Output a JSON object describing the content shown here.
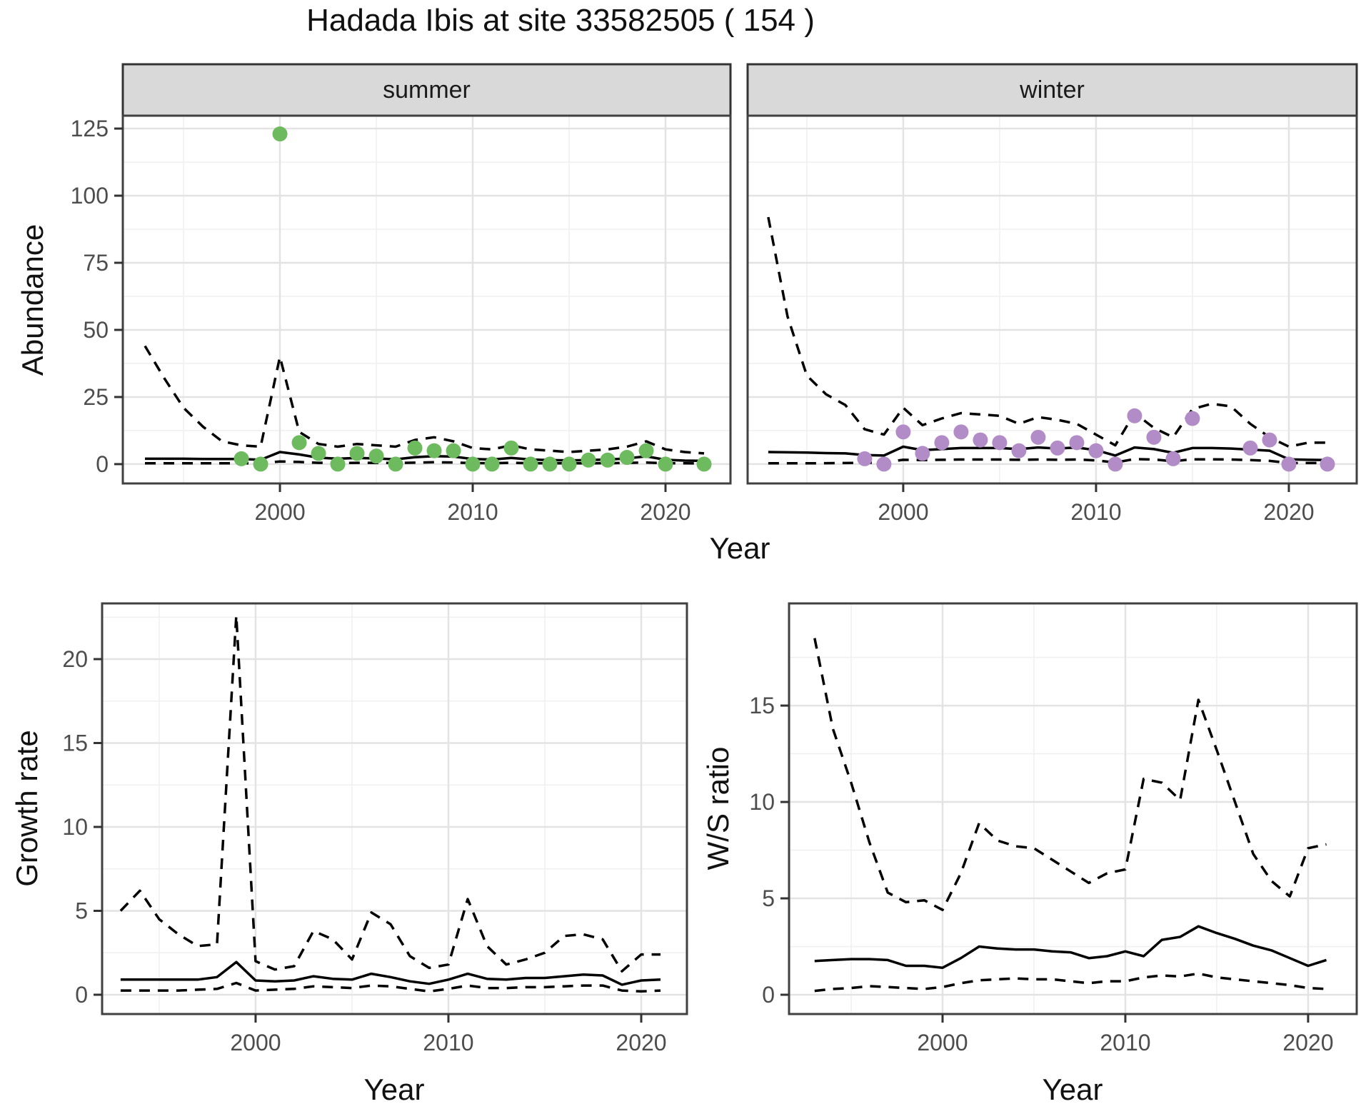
{
  "title": "Hadada Ibis at site 33582505 ( 154 )",
  "facets": {
    "summer": "summer",
    "winter": "winter"
  },
  "axes": {
    "x_title": "Year",
    "abundance_title": "Abundance",
    "growth_title": "Growth rate",
    "ws_title": "W/S ratio"
  },
  "colors": {
    "background": "#ffffff",
    "strip_bg": "#d9d9d9",
    "strip_border": "#333333",
    "panel_border": "#404040",
    "grid_major": "#e3e3e3",
    "grid_minor": "#f0f0f0",
    "line": "#000000",
    "tick_label": "#4d4d4d",
    "summer_point": "#6dbb5e",
    "winter_point": "#b28cc6"
  },
  "chart_data": [
    {
      "id": "abundance_summer",
      "type": "line",
      "facet_label": "summer",
      "xlabel": "Year",
      "ylabel": "Abundance",
      "x_ticks": [
        2000,
        2010,
        2020
      ],
      "y_ticks": [
        0,
        25,
        50,
        75,
        100,
        125
      ],
      "xlim": [
        1991.85,
        2023.37
      ],
      "ylim": [
        -7.2,
        129.8
      ],
      "grid": true,
      "series": [
        {
          "name": "fit",
          "style": "solid",
          "x": [
            1993,
            1994,
            1995,
            1996,
            1997,
            1998,
            1999,
            2000,
            2001,
            2002,
            2003,
            2004,
            2005,
            2006,
            2007,
            2008,
            2009,
            2010,
            2011,
            2012,
            2013,
            2014,
            2015,
            2016,
            2017,
            2018,
            2019,
            2020,
            2021,
            2022
          ],
          "y": [
            2.0,
            2.0,
            2.0,
            1.9,
            1.9,
            1.9,
            1.6,
            4.5,
            3.6,
            2.4,
            2.0,
            2.3,
            2.1,
            1.8,
            2.6,
            3.0,
            2.8,
            1.9,
            1.7,
            2.3,
            1.7,
            1.5,
            1.4,
            1.5,
            1.7,
            2.1,
            2.9,
            1.6,
            1.3,
            1.2
          ]
        },
        {
          "name": "upper_ci",
          "style": "dashed",
          "x": [
            1993,
            1994,
            1995,
            1996,
            1997,
            1998,
            1999,
            2000,
            2001,
            2002,
            2003,
            2004,
            2005,
            2006,
            2007,
            2008,
            2009,
            2010,
            2011,
            2012,
            2013,
            2014,
            2015,
            2016,
            2017,
            2018,
            2019,
            2020,
            2021,
            2022
          ],
          "y": [
            44,
            32,
            21,
            14,
            8.5,
            7,
            6.5,
            40,
            12,
            7.5,
            6.5,
            7.5,
            7,
            6.5,
            9,
            10,
            8.5,
            6,
            5.5,
            7,
            5.5,
            5,
            4.5,
            5,
            5.5,
            6.5,
            8.5,
            5.5,
            4.5,
            4
          ]
        },
        {
          "name": "lower_ci",
          "style": "dashed",
          "x": [
            1993,
            1994,
            1995,
            1996,
            1997,
            1998,
            1999,
            2000,
            2001,
            2002,
            2003,
            2004,
            2005,
            2006,
            2007,
            2008,
            2009,
            2010,
            2011,
            2012,
            2013,
            2014,
            2015,
            2016,
            2017,
            2018,
            2019,
            2020,
            2021,
            2022
          ],
          "y": [
            0.3,
            0.3,
            0.3,
            0.3,
            0.3,
            0.3,
            0.3,
            1.0,
            0.8,
            0.5,
            0.4,
            0.5,
            0.45,
            0.4,
            0.55,
            0.7,
            0.6,
            0.4,
            0.35,
            0.5,
            0.35,
            0.3,
            0.3,
            0.3,
            0.35,
            0.45,
            0.6,
            0.35,
            0.3,
            0.25
          ]
        },
        {
          "name": "counts",
          "style": "points",
          "color_key": "summer_point",
          "x": [
            1998,
            1999,
            2000,
            2001,
            2002,
            2003,
            2004,
            2005,
            2006,
            2007,
            2008,
            2009,
            2010,
            2011,
            2012,
            2013,
            2014,
            2015,
            2016,
            2017,
            2018,
            2019,
            2020,
            2022
          ],
          "y": [
            2,
            0,
            123,
            8,
            4,
            0,
            4,
            3,
            0,
            6,
            5,
            5,
            0,
            0,
            6,
            0,
            0,
            0,
            1.5,
            1.5,
            2.5,
            5,
            0,
            0
          ]
        }
      ]
    },
    {
      "id": "abundance_winter",
      "type": "line",
      "facet_label": "winter",
      "xlabel": "Year",
      "ylabel": "Abundance",
      "x_ticks": [
        2000,
        2010,
        2020
      ],
      "y_ticks": [
        0,
        25,
        50,
        75,
        100,
        125
      ],
      "xlim": [
        1991.93,
        2023.52
      ],
      "ylim": [
        -7.2,
        129.8
      ],
      "grid": true,
      "series": [
        {
          "name": "fit",
          "style": "solid",
          "x": [
            1993,
            1994,
            1995,
            1996,
            1997,
            1998,
            1999,
            2000,
            2001,
            2002,
            2003,
            2004,
            2005,
            2006,
            2007,
            2008,
            2009,
            2010,
            2011,
            2012,
            2013,
            2014,
            2015,
            2016,
            2017,
            2018,
            2019,
            2020,
            2021,
            2022
          ],
          "y": [
            4.5,
            4.4,
            4.3,
            4.1,
            4.0,
            3.4,
            3.2,
            6.5,
            5.2,
            5.6,
            6.0,
            6.0,
            6.0,
            5.6,
            6.2,
            5.8,
            6.2,
            5.2,
            3.2,
            6.2,
            5.6,
            4.2,
            6.0,
            6.0,
            5.8,
            5.4,
            5.0,
            1.8,
            1.6,
            1.5
          ]
        },
        {
          "name": "upper_ci",
          "style": "dashed",
          "x": [
            1993,
            1994,
            1995,
            1996,
            1997,
            1998,
            1999,
            2000,
            2001,
            2002,
            2003,
            2004,
            2005,
            2006,
            2007,
            2008,
            2009,
            2010,
            2011,
            2012,
            2013,
            2014,
            2015,
            2016,
            2017,
            2018,
            2019,
            2020,
            2021,
            2022
          ],
          "y": [
            92,
            55,
            33,
            26,
            22,
            13,
            11,
            21,
            14.5,
            17,
            19,
            18.5,
            18,
            15,
            17.5,
            16.5,
            15,
            11,
            7,
            19,
            13.5,
            10,
            20.5,
            22.5,
            21.5,
            15,
            10,
            6.5,
            8,
            8
          ]
        },
        {
          "name": "lower_ci",
          "style": "dashed",
          "x": [
            1993,
            1994,
            1995,
            1996,
            1997,
            1998,
            1999,
            2000,
            2001,
            2002,
            2003,
            2004,
            2005,
            2006,
            2007,
            2008,
            2009,
            2010,
            2011,
            2012,
            2013,
            2014,
            2015,
            2016,
            2017,
            2018,
            2019,
            2020,
            2021,
            2022
          ],
          "y": [
            0.3,
            0.3,
            0.3,
            0.35,
            0.4,
            0.5,
            0.6,
            1.6,
            1.5,
            1.6,
            1.7,
            1.7,
            1.7,
            1.6,
            1.7,
            1.6,
            1.7,
            1.4,
            0.6,
            1.9,
            1.7,
            1.1,
            1.8,
            1.8,
            1.7,
            1.5,
            1.2,
            0.4,
            0.4,
            0.4
          ]
        },
        {
          "name": "counts",
          "style": "points",
          "color_key": "winter_point",
          "x": [
            1998,
            1999,
            2000,
            2001,
            2002,
            2003,
            2004,
            2005,
            2006,
            2007,
            2008,
            2009,
            2010,
            2011,
            2012,
            2013,
            2014,
            2015,
            2018,
            2019,
            2020,
            2022
          ],
          "y": [
            2,
            0,
            12,
            4,
            8,
            12,
            9,
            8,
            5,
            10,
            6,
            8,
            5,
            0,
            18,
            10,
            2,
            17,
            6,
            9,
            0,
            0
          ]
        }
      ]
    },
    {
      "id": "growth_rate",
      "type": "line",
      "facet_label": "",
      "xlabel": "Year",
      "ylabel": "Growth rate",
      "x_ticks": [
        2000,
        2010,
        2020
      ],
      "y_ticks": [
        0,
        5,
        10,
        15,
        20
      ],
      "xlim": [
        1992.04,
        2022.37
      ],
      "ylim": [
        -1.15,
        23.32
      ],
      "grid": true,
      "series": [
        {
          "name": "fit",
          "style": "solid",
          "x": [
            1993,
            1994,
            1995,
            1996,
            1997,
            1998,
            1999,
            2000,
            2001,
            2002,
            2003,
            2004,
            2005,
            2006,
            2007,
            2008,
            2009,
            2010,
            2011,
            2012,
            2013,
            2014,
            2015,
            2016,
            2017,
            2018,
            2019,
            2020,
            2021
          ],
          "y": [
            0.9,
            0.9,
            0.9,
            0.9,
            0.9,
            1.05,
            1.95,
            0.85,
            0.8,
            0.85,
            1.1,
            0.95,
            0.9,
            1.25,
            1.05,
            0.8,
            0.65,
            0.9,
            1.25,
            0.95,
            0.9,
            1.0,
            1.0,
            1.1,
            1.2,
            1.15,
            0.6,
            0.85,
            0.9
          ]
        },
        {
          "name": "upper_ci",
          "style": "dashed",
          "x": [
            1993,
            1994,
            1995,
            1996,
            1997,
            1998,
            1999,
            2000,
            2001,
            2002,
            2003,
            2004,
            2005,
            2006,
            2007,
            2008,
            2009,
            2010,
            2011,
            2012,
            2013,
            2014,
            2015,
            2016,
            2017,
            2018,
            2019,
            2020,
            2021
          ],
          "y": [
            5.0,
            6.2,
            4.5,
            3.6,
            2.9,
            3.0,
            22.6,
            2.0,
            1.5,
            1.7,
            3.8,
            3.3,
            2.1,
            4.9,
            4.2,
            2.3,
            1.6,
            1.8,
            5.7,
            2.9,
            1.8,
            2.1,
            2.5,
            3.5,
            3.6,
            3.3,
            1.4,
            2.4,
            2.4
          ]
        },
        {
          "name": "lower_ci",
          "style": "dashed",
          "x": [
            1993,
            1994,
            1995,
            1996,
            1997,
            1998,
            1999,
            2000,
            2001,
            2002,
            2003,
            2004,
            2005,
            2006,
            2007,
            2008,
            2009,
            2010,
            2011,
            2012,
            2013,
            2014,
            2015,
            2016,
            2017,
            2018,
            2019,
            2020,
            2021
          ],
          "y": [
            0.25,
            0.25,
            0.25,
            0.25,
            0.3,
            0.35,
            0.7,
            0.25,
            0.3,
            0.35,
            0.5,
            0.45,
            0.4,
            0.55,
            0.5,
            0.35,
            0.2,
            0.35,
            0.55,
            0.4,
            0.4,
            0.45,
            0.45,
            0.5,
            0.55,
            0.55,
            0.25,
            0.2,
            0.25
          ]
        }
      ]
    },
    {
      "id": "ws_ratio",
      "type": "line",
      "facet_label": "",
      "xlabel": "Year",
      "ylabel": "W/S ratio",
      "x_ticks": [
        2000,
        2010,
        2020
      ],
      "y_ticks": [
        0,
        5,
        10,
        15
      ],
      "xlim": [
        1991.6,
        2022.66
      ],
      "ylim": [
        -1.0,
        20.3
      ],
      "grid": true,
      "series": [
        {
          "name": "fit",
          "style": "solid",
          "x": [
            1993,
            1994,
            1995,
            1996,
            1997,
            1998,
            1999,
            2000,
            2001,
            2002,
            2003,
            2004,
            2005,
            2006,
            2007,
            2008,
            2009,
            2010,
            2011,
            2012,
            2013,
            2014,
            2015,
            2016,
            2017,
            2018,
            2019,
            2020,
            2021
          ],
          "y": [
            1.75,
            1.8,
            1.85,
            1.85,
            1.8,
            1.5,
            1.5,
            1.4,
            1.9,
            2.5,
            2.4,
            2.35,
            2.35,
            2.25,
            2.2,
            1.9,
            2.0,
            2.25,
            2.0,
            2.85,
            3.0,
            3.55,
            3.2,
            2.9,
            2.55,
            2.3,
            1.9,
            1.5,
            1.8
          ]
        },
        {
          "name": "upper_ci",
          "style": "dashed",
          "x": [
            1993,
            1994,
            1995,
            1996,
            1997,
            1998,
            1999,
            2000,
            2001,
            2002,
            2003,
            2004,
            2005,
            2006,
            2007,
            2008,
            2009,
            2010,
            2011,
            2012,
            2013,
            2014,
            2015,
            2016,
            2017,
            2018,
            2019,
            2020,
            2021
          ],
          "y": [
            18.5,
            13.8,
            11.0,
            7.9,
            5.3,
            4.8,
            4.9,
            4.4,
            6.3,
            8.9,
            8.0,
            7.7,
            7.6,
            7.0,
            6.4,
            5.8,
            6.3,
            6.5,
            11.2,
            11.0,
            10.1,
            15.3,
            12.7,
            10.0,
            7.3,
            5.9,
            5.1,
            7.6,
            7.8
          ]
        },
        {
          "name": "lower_ci",
          "style": "dashed",
          "x": [
            1993,
            1994,
            1995,
            1996,
            1997,
            1998,
            1999,
            2000,
            2001,
            2002,
            2003,
            2004,
            2005,
            2006,
            2007,
            2008,
            2009,
            2010,
            2011,
            2012,
            2013,
            2014,
            2015,
            2016,
            2017,
            2018,
            2019,
            2020,
            2021
          ],
          "y": [
            0.2,
            0.3,
            0.35,
            0.45,
            0.4,
            0.35,
            0.3,
            0.4,
            0.6,
            0.75,
            0.8,
            0.85,
            0.8,
            0.8,
            0.7,
            0.6,
            0.7,
            0.7,
            0.9,
            1.0,
            0.95,
            1.1,
            0.9,
            0.8,
            0.7,
            0.6,
            0.5,
            0.35,
            0.3
          ]
        }
      ]
    }
  ]
}
